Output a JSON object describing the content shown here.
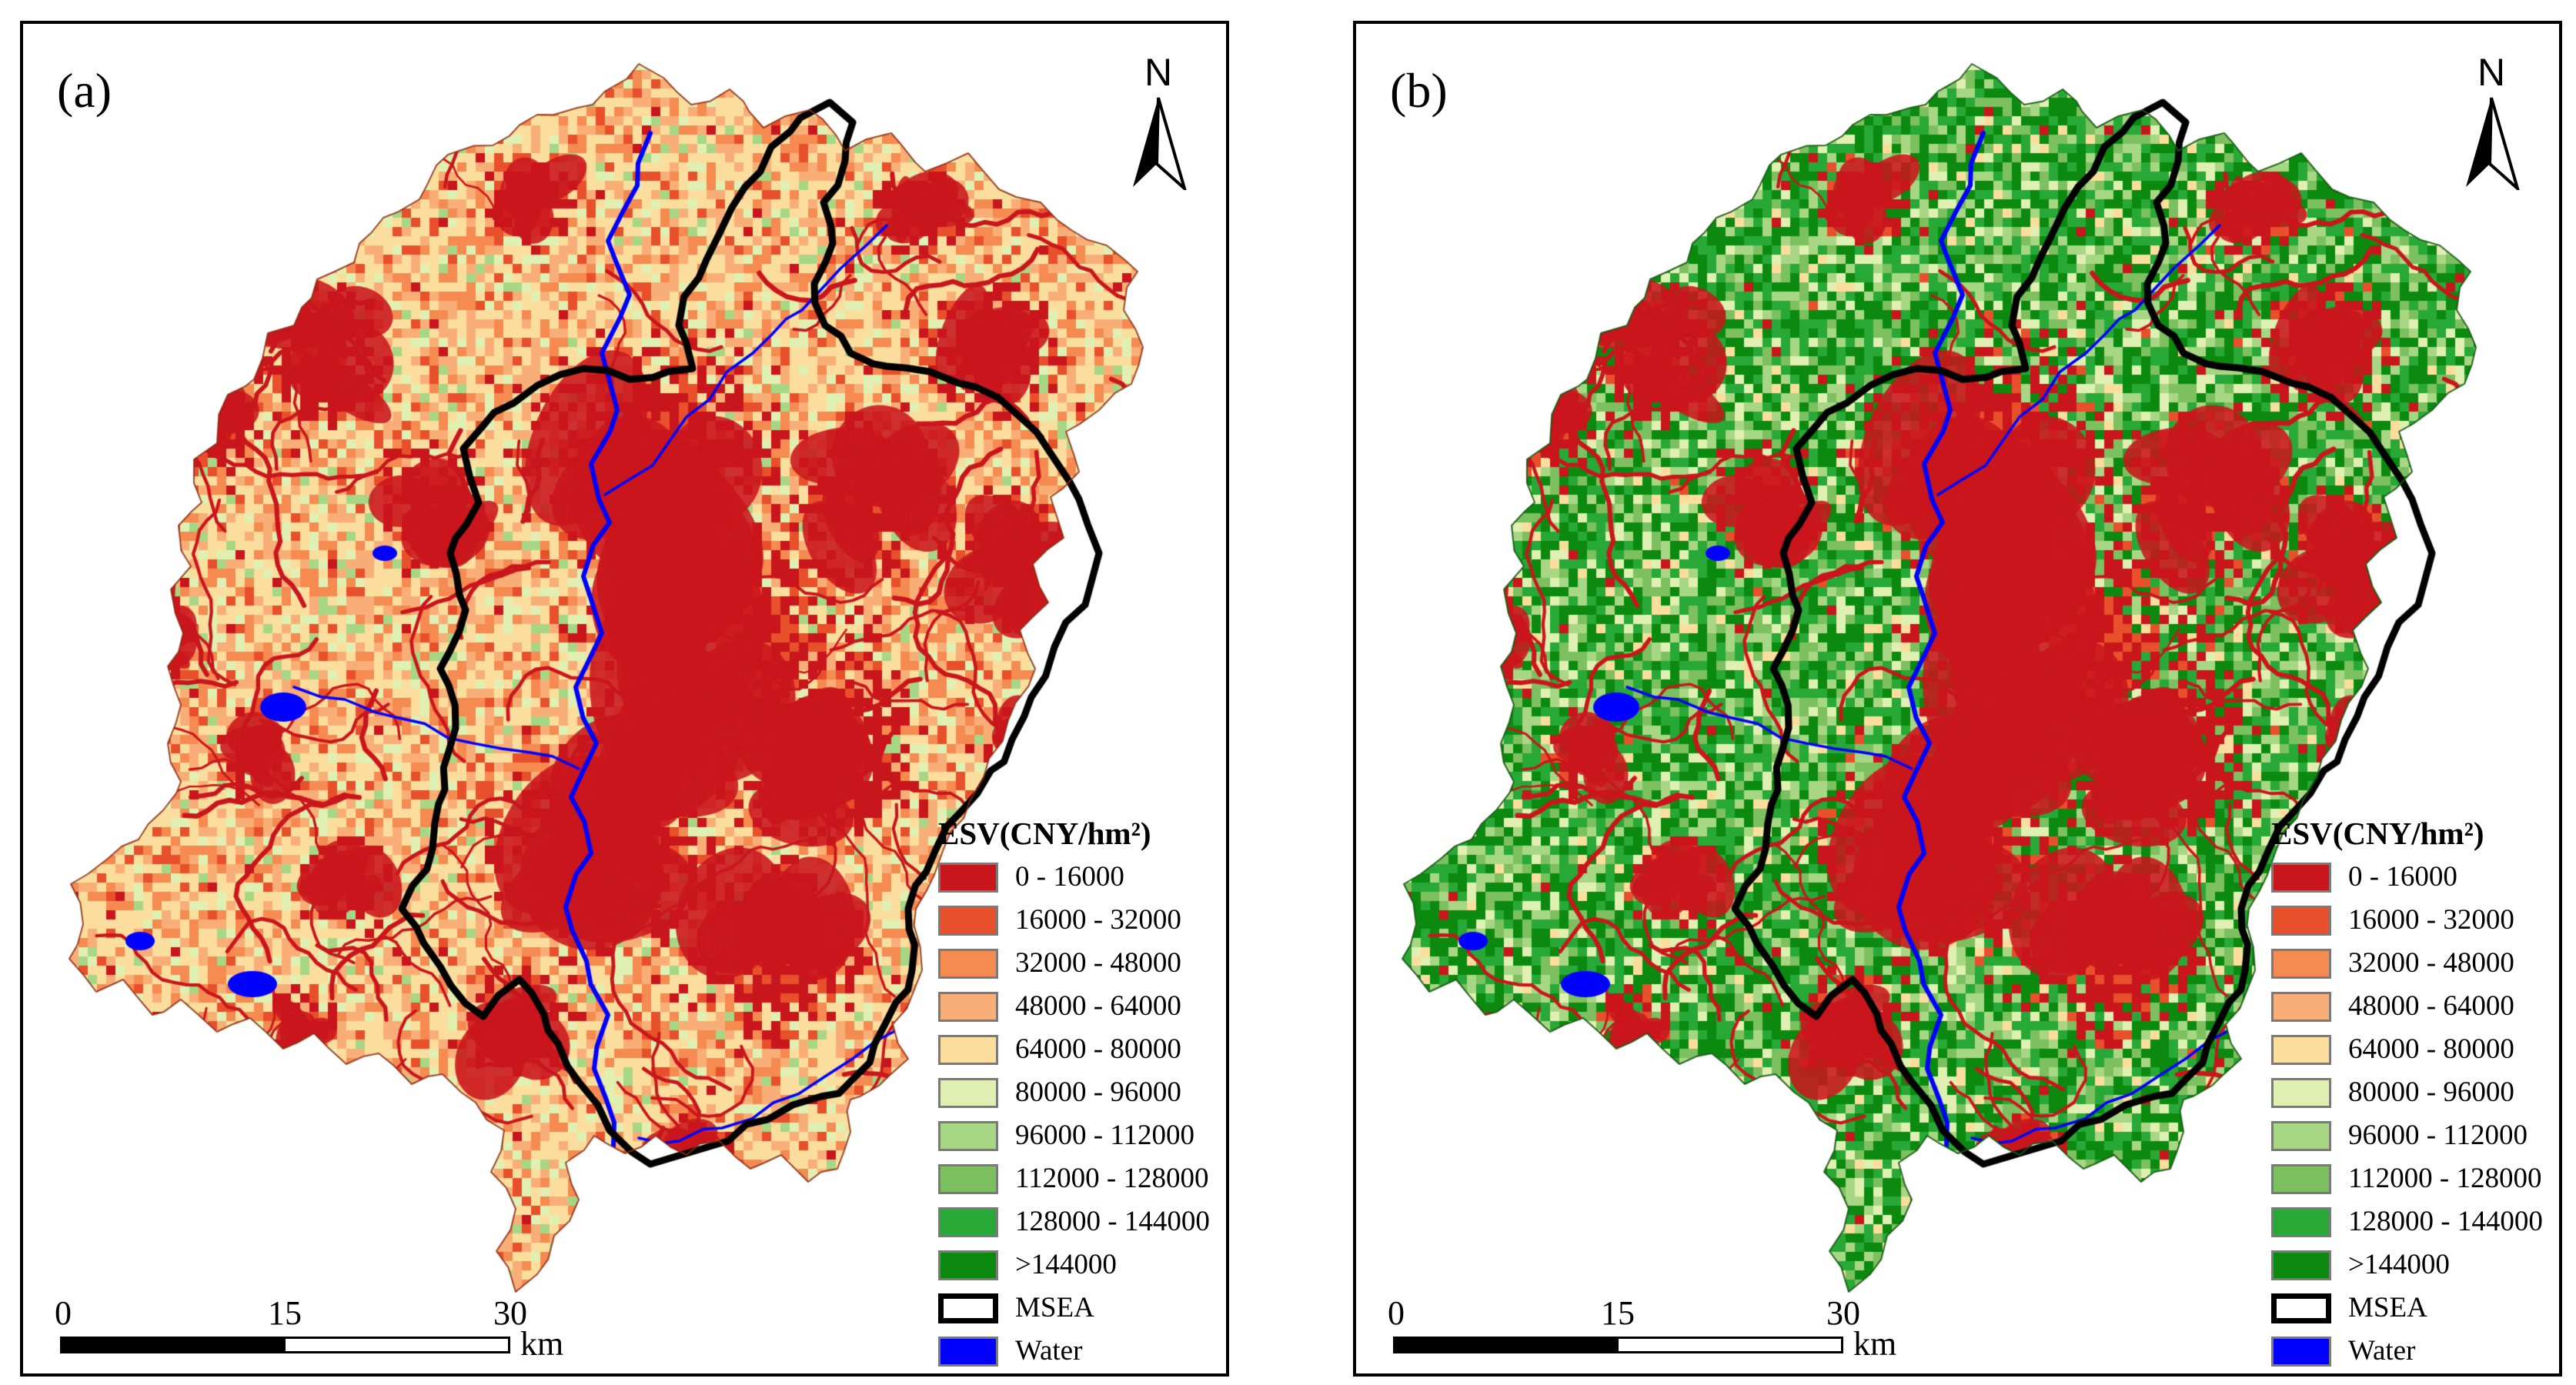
{
  "figure": {
    "panels": [
      {
        "label": "(a)"
      },
      {
        "label": "(b)"
      }
    ],
    "north_label": "N",
    "legend": {
      "title": "ESV(CNY/hm²)",
      "classes": [
        {
          "label": "0 - 16000",
          "color": "#c9161c"
        },
        {
          "label": "16000 - 32000",
          "color": "#e8502b"
        },
        {
          "label": "32000 - 48000",
          "color": "#f58b51"
        },
        {
          "label": "48000 - 64000",
          "color": "#faae77"
        },
        {
          "label": "64000 - 80000",
          "color": "#fbde9d"
        },
        {
          "label": "80000 - 96000",
          "color": "#dff0b2"
        },
        {
          "label": "96000 - 112000",
          "color": "#a7d784"
        },
        {
          "label": "112000 - 128000",
          "color": "#7cc05f"
        },
        {
          "label": "128000 - 144000",
          "color": "#28a837"
        },
        {
          "label": ">144000",
          "color": "#0b8a0f"
        }
      ],
      "msea": {
        "label": "MSEA"
      },
      "water": {
        "label": "Water",
        "color": "#0000fe"
      }
    },
    "scalebar": {
      "tick0": "0",
      "tick1": "15",
      "tick2": "30",
      "unit": "km"
    }
  }
}
